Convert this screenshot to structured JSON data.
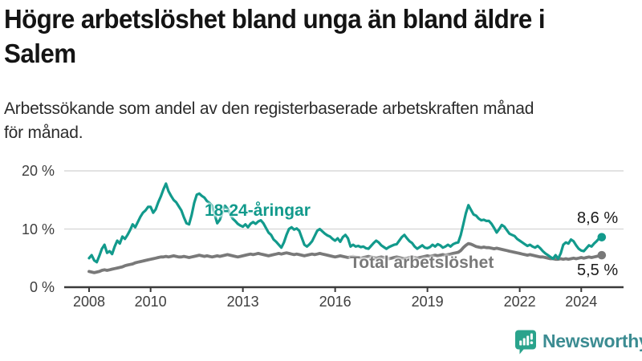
{
  "header": {
    "title_line1": "Högre arbetslöshet bland unga än bland äldre i",
    "title_line2": "Salem",
    "subtitle_line1": "Arbetssökande som andel av den registerbaserade arbetskraften månad",
    "subtitle_line2": "för månad."
  },
  "footer": {
    "brand": "Newsworthy",
    "brand_text_color": "#3c8c92",
    "brand_badge_color": "#2aa38c"
  },
  "chart_data": {
    "type": "line",
    "title": "Högre arbetslöshet bland unga än bland äldre i Salem",
    "subtitle": "Arbetssökande som andel av den registerbaserade arbetskraften månad för månad.",
    "unit": "%",
    "ylim": [
      0,
      20
    ],
    "grid": true,
    "x_start_year": 2008,
    "x_step_months": 1,
    "x_ticks": [
      {
        "year": 2008,
        "label": "2008"
      },
      {
        "year": 2010,
        "label": "2010"
      },
      {
        "year": 2013,
        "label": "2013"
      },
      {
        "year": 2016,
        "label": "2016"
      },
      {
        "year": 2019,
        "label": "2019"
      },
      {
        "year": 2022,
        "label": "2022"
      },
      {
        "year": 2024,
        "label": "2024"
      }
    ],
    "y_ticks": [
      {
        "value": 0,
        "label": "0 %"
      },
      {
        "value": 10,
        "label": "10 %"
      },
      {
        "value": 20,
        "label": "20 %"
      }
    ],
    "series": [
      {
        "name": "18-24-åringar",
        "color": "#129a8c",
        "end_label": "8,6 %",
        "end_value": 8.6,
        "values": [
          5.0,
          5.5,
          4.6,
          4.3,
          5.4,
          6.6,
          7.3,
          5.9,
          6.2,
          5.7,
          7.0,
          8.0,
          7.5,
          8.7,
          8.3,
          9.0,
          9.8,
          10.8,
          10.3,
          11.2,
          12.1,
          12.8,
          13.2,
          13.8,
          13.8,
          12.8,
          13.4,
          14.6,
          15.6,
          16.8,
          17.8,
          16.5,
          15.7,
          15.0,
          14.6,
          13.9,
          13.2,
          12.0,
          11.0,
          10.8,
          12.4,
          14.5,
          15.9,
          16.1,
          15.7,
          15.4,
          14.8,
          14.5,
          14.0,
          12.5,
          11.0,
          11.6,
          12.8,
          14.0,
          13.5,
          12.6,
          11.8,
          11.4,
          10.9,
          10.6,
          10.4,
          10.8,
          10.3,
          10.9,
          11.2,
          10.9,
          11.3,
          11.5,
          11.0,
          10.2,
          9.4,
          9.0,
          8.2,
          7.8,
          7.3,
          6.8,
          7.7,
          9.0,
          10.0,
          10.3,
          9.9,
          10.1,
          9.7,
          8.5,
          7.3,
          7.0,
          7.4,
          7.9,
          8.8,
          9.7,
          10.0,
          9.6,
          9.2,
          8.9,
          8.7,
          8.3,
          8.0,
          8.4,
          7.8,
          8.6,
          9.0,
          8.4,
          7.0,
          7.3,
          7.0,
          7.1,
          6.9,
          7.0,
          6.7,
          6.6,
          7.1,
          7.6,
          8.0,
          7.7,
          7.2,
          6.9,
          6.6,
          6.9,
          7.1,
          7.3,
          7.4,
          8.0,
          8.6,
          9.0,
          8.4,
          7.9,
          7.6,
          7.0,
          6.6,
          6.9,
          7.2,
          6.8,
          6.7,
          6.9,
          7.3,
          7.0,
          7.4,
          7.2,
          6.8,
          7.0,
          7.3,
          7.0,
          7.4,
          7.6,
          7.7,
          9.0,
          10.8,
          12.7,
          14.1,
          13.3,
          12.5,
          12.3,
          11.8,
          11.5,
          11.6,
          11.4,
          11.4,
          10.9,
          10.2,
          9.4,
          10.0,
          10.7,
          10.4,
          9.8,
          9.2,
          9.0,
          8.8,
          8.3,
          8.0,
          7.7,
          7.4,
          7.1,
          7.3,
          7.0,
          6.8,
          7.1,
          6.7,
          6.2,
          5.8,
          5.5,
          5.2,
          4.9,
          5.5,
          4.9,
          5.8,
          7.3,
          7.7,
          7.5,
          8.2,
          7.9,
          7.2,
          6.6,
          6.3,
          6.2,
          6.7,
          7.2,
          7.0,
          7.5,
          7.9,
          8.4,
          8.6
        ]
      },
      {
        "name": "Total arbetslöshet",
        "color": "#797979",
        "end_label": "5,5 %",
        "end_value": 5.5,
        "values": [
          2.7,
          2.6,
          2.5,
          2.6,
          2.7,
          2.9,
          3.0,
          2.9,
          3.0,
          3.1,
          3.2,
          3.3,
          3.4,
          3.5,
          3.7,
          3.8,
          3.9,
          4.0,
          4.2,
          4.3,
          4.4,
          4.5,
          4.6,
          4.7,
          4.8,
          4.9,
          5.0,
          5.1,
          5.2,
          5.2,
          5.3,
          5.2,
          5.3,
          5.4,
          5.3,
          5.2,
          5.2,
          5.3,
          5.2,
          5.1,
          5.2,
          5.3,
          5.4,
          5.5,
          5.4,
          5.3,
          5.4,
          5.3,
          5.2,
          5.3,
          5.4,
          5.3,
          5.4,
          5.5,
          5.6,
          5.5,
          5.4,
          5.3,
          5.2,
          5.3,
          5.4,
          5.5,
          5.6,
          5.7,
          5.6,
          5.7,
          5.8,
          5.7,
          5.6,
          5.5,
          5.4,
          5.5,
          5.6,
          5.7,
          5.8,
          5.7,
          5.8,
          5.9,
          5.8,
          5.7,
          5.6,
          5.7,
          5.6,
          5.5,
          5.4,
          5.5,
          5.6,
          5.7,
          5.6,
          5.7,
          5.8,
          5.7,
          5.6,
          5.5,
          5.4,
          5.3,
          5.2,
          5.3,
          5.4,
          5.3,
          5.2,
          5.1,
          5.2,
          5.3,
          5.2,
          5.1,
          5.0,
          5.1,
          5.2,
          5.3,
          5.2,
          5.1,
          5.0,
          5.1,
          5.2,
          5.1,
          5.0,
          4.9,
          5.0,
          5.1,
          5.2,
          5.1,
          5.0,
          4.9,
          5.0,
          5.1,
          5.2,
          5.1,
          5.0,
          5.1,
          5.2,
          5.3,
          5.4,
          5.3,
          5.4,
          5.5,
          5.4,
          5.5,
          5.6,
          5.5,
          5.6,
          5.7,
          5.8,
          5.9,
          6.0,
          6.3,
          6.8,
          7.2,
          7.5,
          7.4,
          7.2,
          7.0,
          6.9,
          6.8,
          6.9,
          6.8,
          6.8,
          6.7,
          6.6,
          6.7,
          6.6,
          6.5,
          6.4,
          6.3,
          6.2,
          6.1,
          6.0,
          5.9,
          5.8,
          5.7,
          5.6,
          5.5,
          5.6,
          5.5,
          5.4,
          5.3,
          5.2,
          5.2,
          5.1,
          5.0,
          4.9,
          4.9,
          4.8,
          4.8,
          4.9,
          4.8,
          4.9,
          4.8,
          4.9,
          5.0,
          4.9,
          5.0,
          5.1,
          5.0,
          5.1,
          5.2,
          5.1,
          5.2,
          5.3,
          5.4,
          5.5
        ]
      }
    ]
  }
}
